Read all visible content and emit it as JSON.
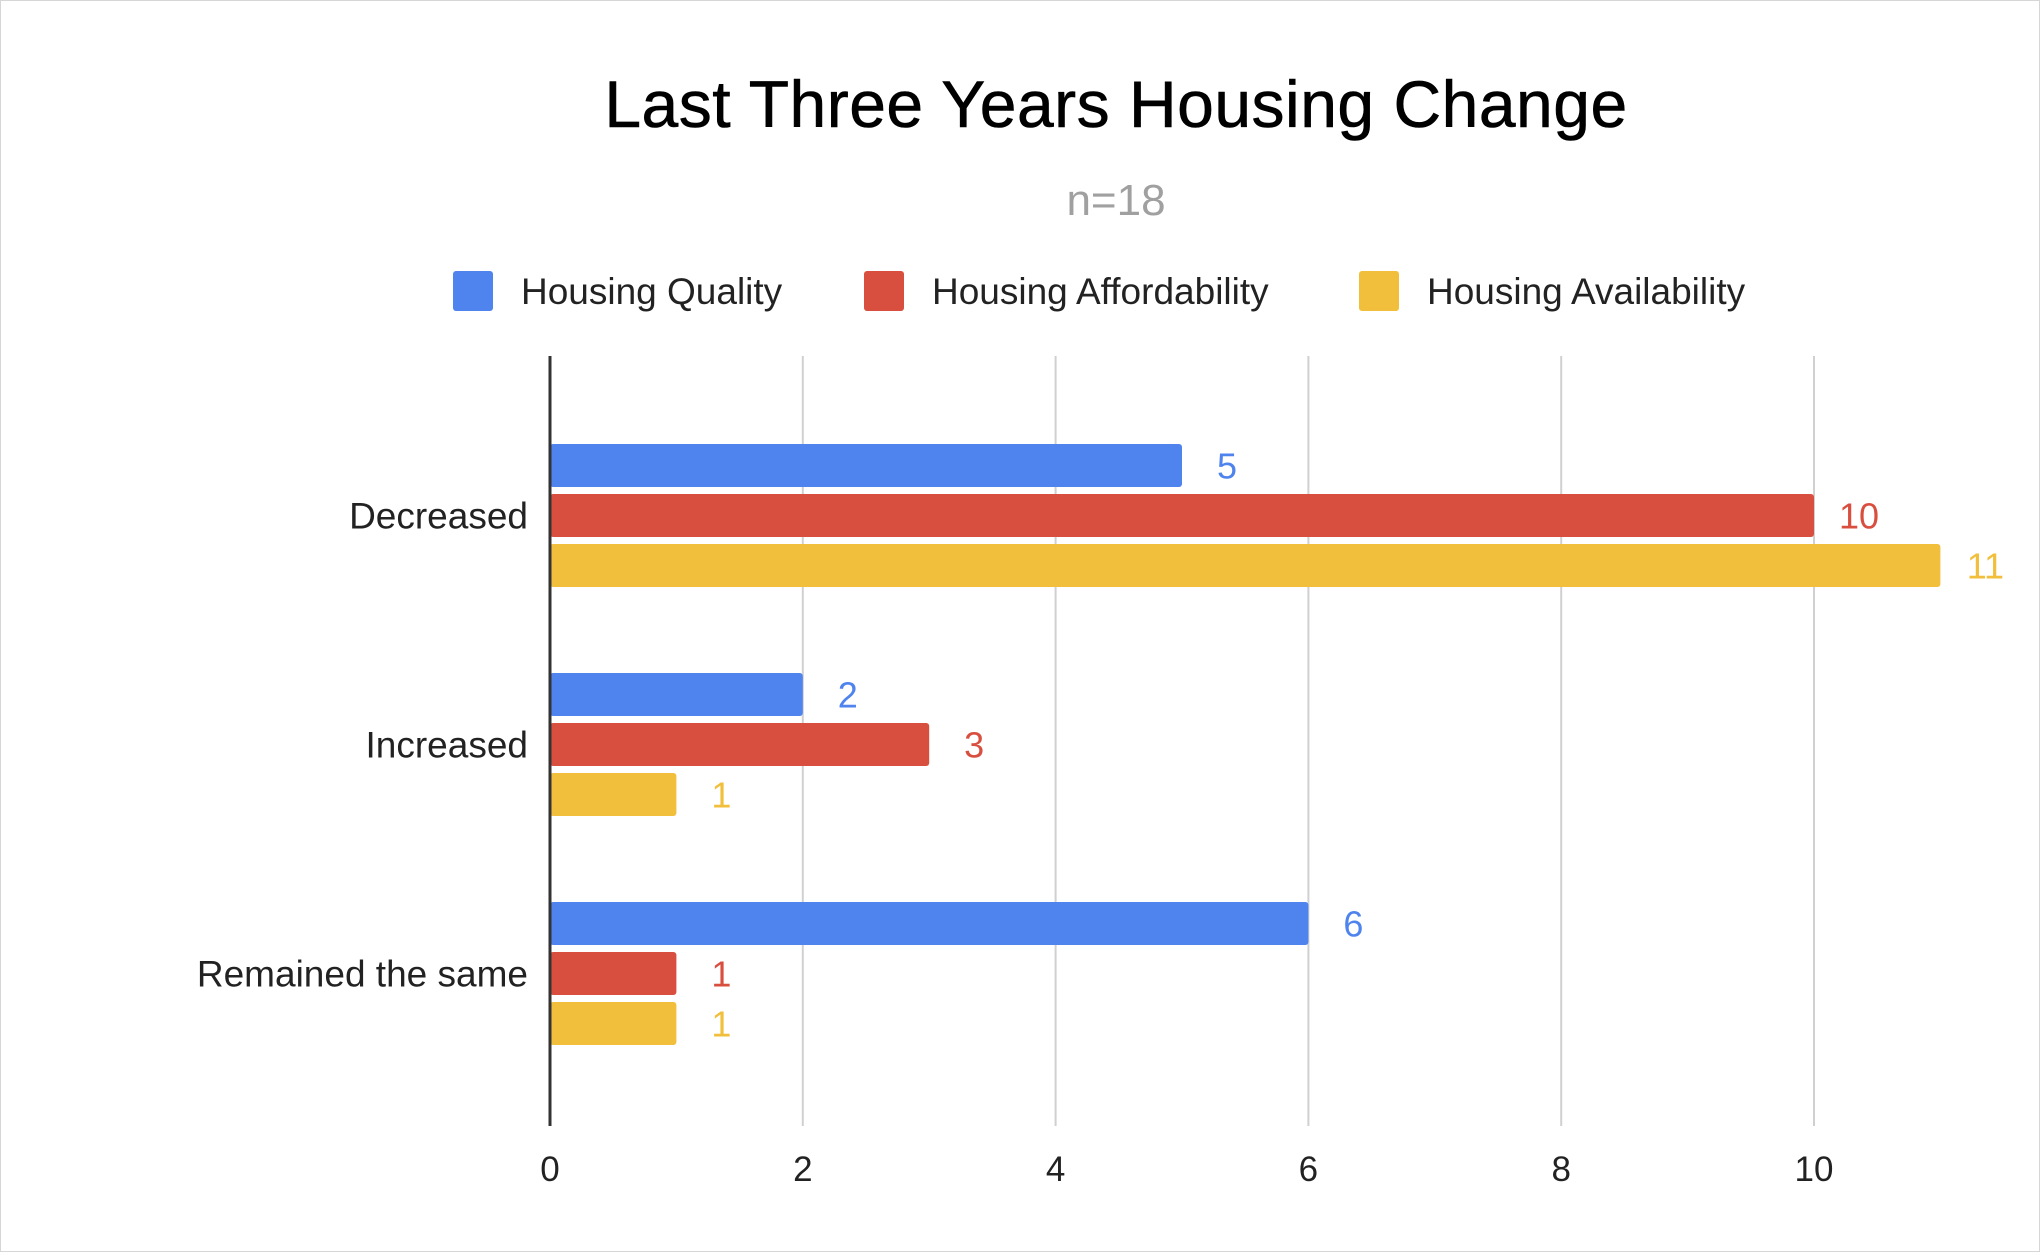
{
  "chart_data": {
    "type": "bar",
    "orientation": "horizontal",
    "title": "Last Three Years Housing Change",
    "subtitle": "n=18",
    "categories": [
      "Decreased",
      "Increased",
      "Remained the same"
    ],
    "series": [
      {
        "name": "Housing Quality",
        "color": "#4f83ed",
        "values": [
          5,
          2,
          6
        ]
      },
      {
        "name": "Housing Affordability",
        "color": "#d94f3f",
        "values": [
          10,
          3,
          1
        ]
      },
      {
        "name": "Housing Availability",
        "color": "#f2bf3d",
        "values": [
          11,
          1,
          1
        ]
      }
    ],
    "xlim": [
      0,
      11.5
    ],
    "xticks": [
      0,
      2,
      4,
      6,
      8,
      10
    ],
    "grid": true,
    "legend_position": "top",
    "data_labels": true
  }
}
